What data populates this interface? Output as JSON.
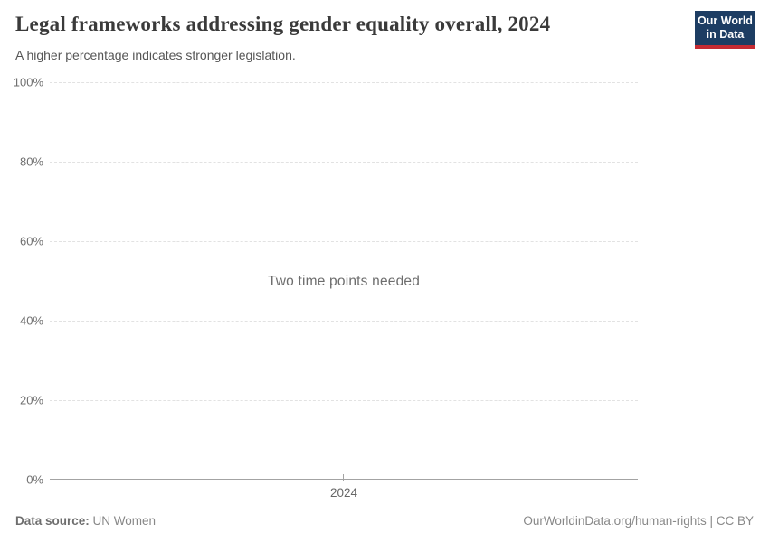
{
  "header": {
    "title": "Legal frameworks addressing gender equality overall, 2024",
    "subtitle": "A higher percentage indicates stronger legislation.",
    "logo": {
      "line1": "Our World",
      "line2": "in Data",
      "bg_color": "#1d3d63",
      "bar_color": "#c52b33"
    }
  },
  "chart": {
    "note": "Two time points needed",
    "y_ticks": [
      "100%",
      "80%",
      "60%",
      "40%",
      "20%",
      "0%"
    ],
    "x_tick": "2024"
  },
  "footer": {
    "source_label": "Data source:",
    "source_value": " UN Women",
    "right_text": "OurWorldinData.org/human-rights | CC BY"
  },
  "chart_data": {
    "type": "line",
    "title": "Legal frameworks addressing gender equality overall, 2024",
    "subtitle": "A higher percentage indicates stronger legislation.",
    "x": [
      2024
    ],
    "x_tick_labels": [
      "2024"
    ],
    "series": [],
    "values": [],
    "annotation": "Two time points needed",
    "ylabel": "",
    "xlabel": "",
    "ylim": [
      0,
      100
    ],
    "y_tick_labels": [
      "0%",
      "20%",
      "40%",
      "60%",
      "80%",
      "100%"
    ],
    "grid": "horizontal-dashed",
    "legend_position": "none",
    "empty": true,
    "empty_reason": "Two time points needed",
    "colors": {
      "gridline": "#e2e2e2",
      "axis_line": "#a3a3a3",
      "tick_label": "#6f6f6f",
      "note_text": "#6d6d6d"
    }
  }
}
